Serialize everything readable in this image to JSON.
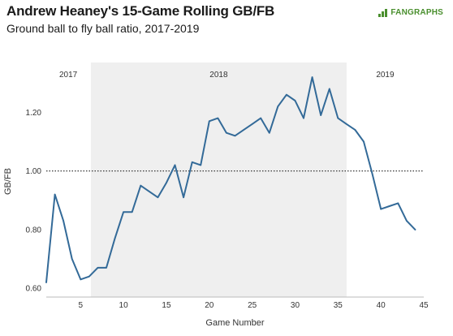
{
  "header": {
    "title": "Andrew Heaney's 15-Game Rolling GB/FB",
    "subtitle": "Ground ball to fly ball ratio, 2017-2019",
    "logo_text": "FANGRAPHS"
  },
  "colors": {
    "line": "#336a98",
    "shade": "#efefef",
    "logo": "#4a8f2e"
  },
  "chart_data": {
    "type": "line",
    "title": "Andrew Heaney's 15-Game Rolling GB/FB",
    "subtitle": "Ground ball to fly ball ratio, 2017-2019",
    "xlabel": "Game Number",
    "ylabel": "GB/FB",
    "xlim": [
      1,
      45
    ],
    "ylim": [
      0.57,
      1.37
    ],
    "x_ticks": [
      5,
      10,
      15,
      20,
      25,
      30,
      35,
      40,
      45
    ],
    "x_tick_labels": [
      "5",
      "10",
      "15",
      "20",
      "25",
      "30",
      "35",
      "40",
      "45"
    ],
    "y_ticks": [
      0.6,
      0.8,
      1.0,
      1.2
    ],
    "y_tick_labels": [
      "0.60",
      "0.80",
      "1.00",
      "1.20"
    ],
    "reference_line": {
      "y": 1.0,
      "style": "dotted"
    },
    "season_regions": [
      {
        "label": "2017",
        "start": 1,
        "end": 6.2,
        "shaded": false
      },
      {
        "label": "2018",
        "start": 6.2,
        "end": 36,
        "shaded": true
      },
      {
        "label": "2019",
        "start": 36,
        "end": 45,
        "shaded": false
      }
    ],
    "grid": false,
    "legend": "none",
    "series": [
      {
        "x": [
          1,
          2,
          3,
          4,
          5,
          6,
          7,
          8,
          9,
          10,
          11,
          12,
          13,
          14,
          15,
          16,
          17,
          18,
          19,
          20,
          21,
          22,
          23,
          24,
          25,
          26,
          27,
          28,
          29,
          30,
          31,
          32,
          33,
          34,
          35,
          36,
          37,
          38,
          39,
          40,
          41,
          42,
          43,
          44
        ],
        "values": [
          0.62,
          0.92,
          0.83,
          0.7,
          0.63,
          0.64,
          0.67,
          0.67,
          0.77,
          0.86,
          0.86,
          0.95,
          0.93,
          0.91,
          0.96,
          1.02,
          0.91,
          1.03,
          1.02,
          1.17,
          1.18,
          1.13,
          1.12,
          1.14,
          1.16,
          1.18,
          1.13,
          1.22,
          1.26,
          1.24,
          1.18,
          1.32,
          1.19,
          1.28,
          1.18,
          1.16,
          1.14,
          1.1,
          0.99,
          0.87,
          0.88,
          0.89,
          0.83,
          0.8
        ]
      }
    ]
  }
}
